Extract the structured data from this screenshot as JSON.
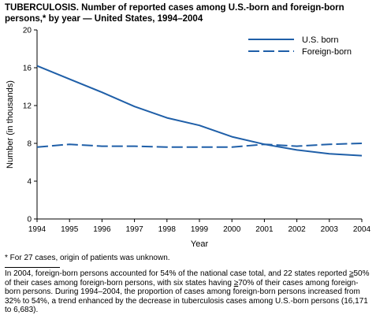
{
  "title": "TUBERCULOSIS. Number of reported cases among U.S.-born and foreign-born persons,* by year — United States, 1994–2004",
  "footnote": "* For 27 cases, origin of patients was unknown.",
  "note": {
    "p1": "In 2004, foreign-born persons accounted for 54% of the national case total, and 22 states reported ",
    "ge1": "≥",
    "p2": "50% of their cases among foreign-born persons, with six states having ",
    "ge2": "≥",
    "p3": "70% of their cases among foreign-born persons. During 1994–2004, the proportion of cases among foreign-born persons increased from 32% to 54%, a trend enhanced by the decrease in tuberculosis cases among U.S.-born persons (16,171 to 6,683)."
  },
  "chart_data": {
    "type": "line",
    "title": "TUBERCULOSIS. Number of reported cases among U.S.-born and foreign-born persons,* by year — United States, 1994–2004",
    "xlabel": "Year",
    "ylabel": "Number (in thousands)",
    "x": [
      1994,
      1995,
      1996,
      1997,
      1998,
      1999,
      2000,
      2001,
      2002,
      2003,
      2004
    ],
    "ylim": [
      0,
      20
    ],
    "yticks": [
      0,
      4,
      8,
      12,
      16,
      20
    ],
    "grid": false,
    "legend": "top-right",
    "series": [
      {
        "name": "U.S. born",
        "style": "solid",
        "color": "#1f5fa8",
        "values": [
          16.2,
          14.8,
          13.4,
          11.9,
          10.7,
          9.9,
          8.7,
          7.9,
          7.3,
          6.9,
          6.7
        ]
      },
      {
        "name": "Foreign-born",
        "style": "dashed",
        "color": "#1f5fa8",
        "values": [
          7.6,
          7.9,
          7.7,
          7.7,
          7.6,
          7.6,
          7.6,
          7.9,
          7.7,
          7.9,
          8.0
        ]
      }
    ]
  }
}
